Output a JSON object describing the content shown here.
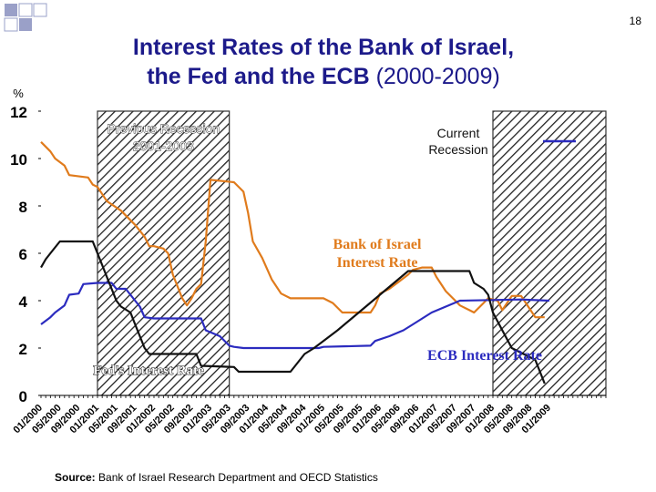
{
  "slide": {
    "title_line1": "Interest Rates of the Bank of Israel,",
    "title_line2_main": "the Fed and the ECB ",
    "title_line2_years": "(2000-2009)",
    "page_number": "18",
    "source_label": "Source:",
    "source_text": " Bank of Israel Research Department and OECD Statistics",
    "colors": {
      "title": "#1c1a8a",
      "deco_square": "#9aa0c8"
    }
  },
  "chart_data": {
    "type": "line",
    "title": "",
    "xlabel": "",
    "ylabel": "%",
    "ylim": [
      0,
      12
    ],
    "yticks": [
      "0",
      "2",
      "4",
      "6",
      "8",
      "10",
      "12"
    ],
    "xlim": [
      "01/2000",
      "01/2010"
    ],
    "xticks": [
      "01/2000",
      "05/2000",
      "09/2000",
      "01/2001",
      "05/2001",
      "09/2001",
      "01/2002",
      "05/2002",
      "09/2002",
      "01/2003",
      "05/2003",
      "09/2003",
      "01/2004",
      "05/2004",
      "09/2004",
      "01/2005",
      "05/2005",
      "09/2005",
      "01/2006",
      "05/2006",
      "09/2006",
      "01/2007",
      "05/2007",
      "09/2007",
      "01/2008",
      "05/2008",
      "09/2008",
      "01/2009"
    ],
    "grid": false,
    "shaded_periods": [
      {
        "label_lines": [
          "Previous Recession",
          "2001-2003"
        ],
        "start": "01/2001",
        "end": "05/2003"
      },
      {
        "label_lines": [
          "Current",
          "Recession"
        ],
        "start": "01/2008",
        "end": "01/2010"
      }
    ],
    "series": [
      {
        "name": "Bank of Israel Interest Rate",
        "label_lines": [
          "Bank of Israel",
          "Interest Rate"
        ],
        "color": "#e07b1c",
        "points": [
          [
            "01/2000",
            10.7
          ],
          [
            "03/2000",
            10.3
          ],
          [
            "04/2000",
            10.0
          ],
          [
            "06/2000",
            9.7
          ],
          [
            "07/2000",
            9.3
          ],
          [
            "11/2000",
            9.2
          ],
          [
            "12/2000",
            8.9
          ],
          [
            "01/2001",
            8.8
          ],
          [
            "03/2001",
            8.2
          ],
          [
            "06/2001",
            7.8
          ],
          [
            "09/2001",
            7.2
          ],
          [
            "11/2001",
            6.7
          ],
          [
            "12/2001",
            6.3
          ],
          [
            "01/2002",
            6.3
          ],
          [
            "03/2002",
            6.2
          ],
          [
            "04/2002",
            6.0
          ],
          [
            "05/2002",
            5.1
          ],
          [
            "07/2002",
            4.1
          ],
          [
            "08/2002",
            3.8
          ],
          [
            "09/2002",
            4.1
          ],
          [
            "10/2002",
            4.5
          ],
          [
            "11/2002",
            4.7
          ],
          [
            "12/2002",
            6.5
          ],
          [
            "01/2003",
            9.1
          ],
          [
            "06/2003",
            9.0
          ],
          [
            "08/2003",
            8.6
          ],
          [
            "09/2003",
            7.7
          ],
          [
            "10/2003",
            6.5
          ],
          [
            "12/2003",
            5.8
          ],
          [
            "02/2004",
            4.9
          ],
          [
            "04/2004",
            4.3
          ],
          [
            "06/2004",
            4.1
          ],
          [
            "01/2005",
            4.1
          ],
          [
            "03/2005",
            3.9
          ],
          [
            "05/2005",
            3.5
          ],
          [
            "11/2005",
            3.5
          ],
          [
            "12/2005",
            3.8
          ],
          [
            "01/2006",
            4.3
          ],
          [
            "03/2006",
            4.5
          ],
          [
            "05/2006",
            4.8
          ],
          [
            "07/2006",
            5.1
          ],
          [
            "08/2006",
            5.3
          ],
          [
            "10/2006",
            5.4
          ],
          [
            "12/2006",
            5.4
          ],
          [
            "01/2007",
            5.0
          ],
          [
            "03/2007",
            4.4
          ],
          [
            "05/2007",
            4.0
          ],
          [
            "06/2007",
            3.8
          ],
          [
            "08/2007",
            3.6
          ],
          [
            "09/2007",
            3.5
          ],
          [
            "11/2007",
            3.9
          ],
          [
            "12/2007",
            4.1
          ],
          [
            "02/2008",
            4.0
          ],
          [
            "03/2008",
            3.6
          ],
          [
            "05/2008",
            4.2
          ],
          [
            "07/2008",
            4.2
          ],
          [
            "09/2008",
            3.6
          ],
          [
            "10/2008",
            3.3
          ],
          [
            "12/2008",
            3.3
          ]
        ]
      },
      {
        "name": "ECB Interest Rate",
        "label_lines": [
          "ECB Interest Rate"
        ],
        "color": "#2b2bbf",
        "points": [
          [
            "01/2000",
            3.0
          ],
          [
            "03/2000",
            3.3
          ],
          [
            "04/2000",
            3.5
          ],
          [
            "06/2000",
            3.8
          ],
          [
            "07/2000",
            4.25
          ],
          [
            "09/2000",
            4.3
          ],
          [
            "10/2000",
            4.7
          ],
          [
            "01/2001",
            4.75
          ],
          [
            "04/2001",
            4.75
          ],
          [
            "05/2001",
            4.5
          ],
          [
            "07/2001",
            4.5
          ],
          [
            "09/2001",
            4.0
          ],
          [
            "10/2001",
            3.75
          ],
          [
            "11/2001",
            3.3
          ],
          [
            "01/2002",
            3.25
          ],
          [
            "11/2002",
            3.25
          ],
          [
            "12/2002",
            2.75
          ],
          [
            "03/2003",
            2.5
          ],
          [
            "05/2003",
            2.1
          ],
          [
            "06/2003",
            2.05
          ],
          [
            "08/2003",
            2.0
          ],
          [
            "12/2004",
            2.0
          ],
          [
            "01/2005",
            2.05
          ],
          [
            "11/2005",
            2.1
          ],
          [
            "12/2005",
            2.3
          ],
          [
            "03/2006",
            2.5
          ],
          [
            "06/2006",
            2.75
          ],
          [
            "08/2006",
            3.0
          ],
          [
            "10/2006",
            3.25
          ],
          [
            "12/2006",
            3.5
          ],
          [
            "03/2007",
            3.75
          ],
          [
            "06/2007",
            4.0
          ],
          [
            "07/2008",
            4.05
          ],
          [
            "01/2009",
            4.0
          ]
        ]
      },
      {
        "name": "Fed's Interest Rate",
        "label_lines": [
          "Fed's Interest Rate"
        ],
        "color": "#111111",
        "points": [
          [
            "01/2000",
            5.4
          ],
          [
            "02/2000",
            5.75
          ],
          [
            "03/2000",
            6.0
          ],
          [
            "05/2000",
            6.5
          ],
          [
            "12/2000",
            6.5
          ],
          [
            "01/2001",
            6.0
          ],
          [
            "02/2001",
            5.5
          ],
          [
            "03/2001",
            5.0
          ],
          [
            "04/2001",
            4.5
          ],
          [
            "05/2001",
            4.0
          ],
          [
            "06/2001",
            3.75
          ],
          [
            "08/2001",
            3.5
          ],
          [
            "09/2001",
            3.0
          ],
          [
            "10/2001",
            2.5
          ],
          [
            "11/2001",
            2.0
          ],
          [
            "12/2001",
            1.75
          ],
          [
            "10/2002",
            1.75
          ],
          [
            "11/2002",
            1.25
          ],
          [
            "06/2003",
            1.2
          ],
          [
            "07/2003",
            1.0
          ],
          [
            "06/2004",
            1.0
          ],
          [
            "07/2004",
            1.25
          ],
          [
            "09/2004",
            1.75
          ],
          [
            "11/2004",
            2.0
          ],
          [
            "01/2005",
            2.3
          ],
          [
            "04/2005",
            2.75
          ],
          [
            "07/2005",
            3.25
          ],
          [
            "10/2005",
            3.75
          ],
          [
            "01/2006",
            4.25
          ],
          [
            "04/2006",
            4.75
          ],
          [
            "07/2006",
            5.25
          ],
          [
            "08/2007",
            5.25
          ],
          [
            "09/2007",
            4.75
          ],
          [
            "11/2007",
            4.5
          ],
          [
            "12/2007",
            4.25
          ],
          [
            "01/2008",
            3.5
          ],
          [
            "03/2008",
            2.75
          ],
          [
            "05/2008",
            2.0
          ],
          [
            "10/2008",
            1.5
          ],
          [
            "12/2008",
            0.5
          ]
        ]
      }
    ],
    "annotations": [
      {
        "text": "Fed's Interest Rate",
        "style": "outlined"
      }
    ]
  }
}
